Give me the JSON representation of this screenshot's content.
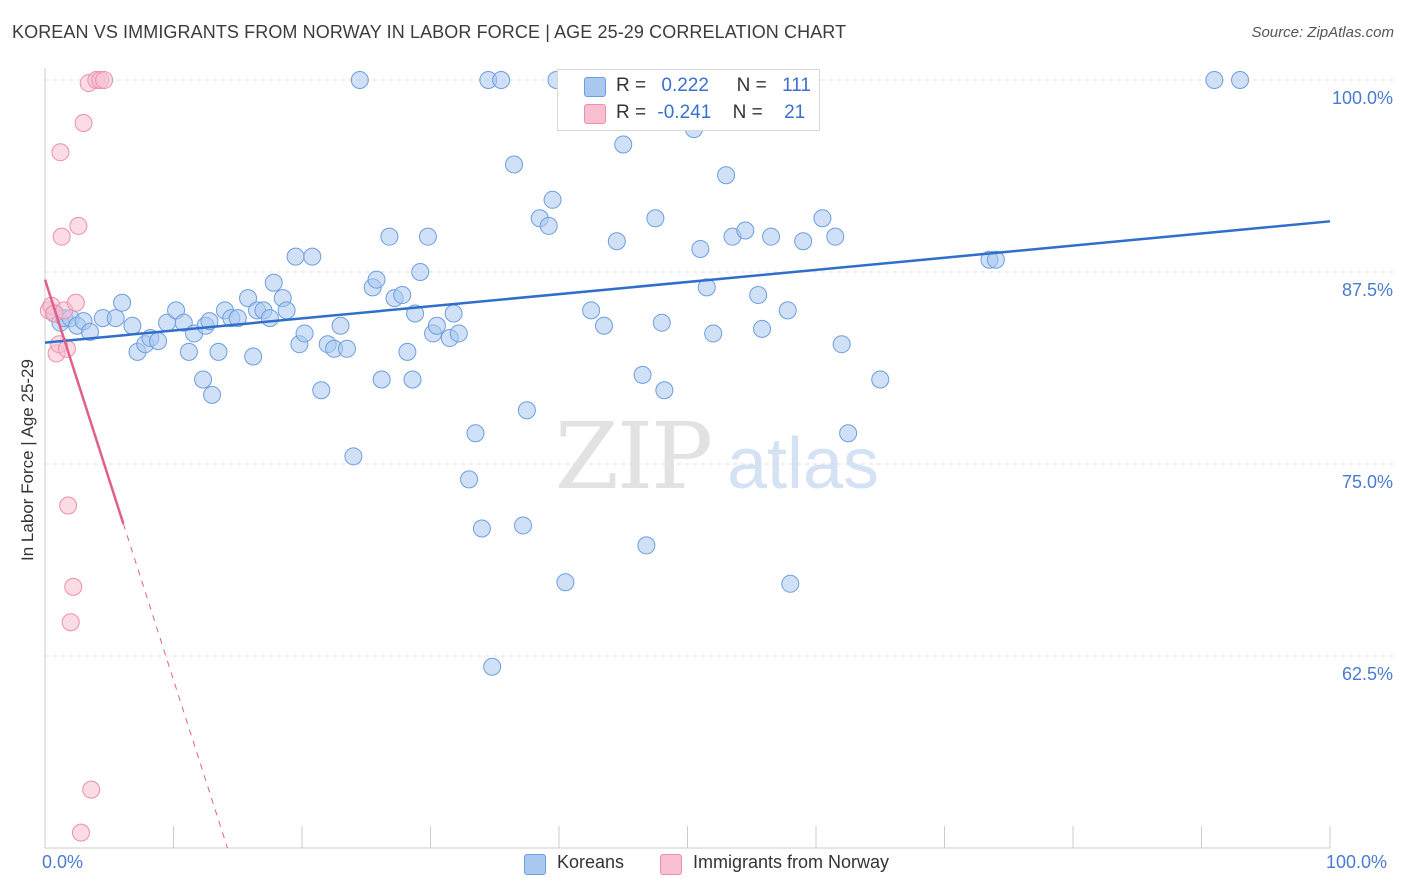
{
  "header": {
    "title": "KOREAN VS IMMIGRANTS FROM NORWAY IN LABOR FORCE | AGE 25-29 CORRELATION CHART",
    "source": "Source: ZipAtlas.com"
  },
  "watermark": {
    "zip": "ZIP",
    "atlas": "atlas"
  },
  "legend": {
    "rows": [
      {
        "r_label": "R =",
        "r_value": "0.222",
        "n_label": "N =",
        "n_value": "111"
      },
      {
        "r_label": "R =",
        "r_value": "-0.241",
        "n_label": "N =",
        "n_value": "21"
      }
    ]
  },
  "colors": {
    "blue_fill": "#aac8f0",
    "blue_stroke": "#6d9ee0",
    "blue_line": "#2f6ecb",
    "pink_fill": "#f7bfd0",
    "pink_stroke": "#ec8fab",
    "pink_line": "#e0608a",
    "grid": "#dcdcdc",
    "axis_label": "#4a7bd0"
  },
  "chart_data": {
    "type": "scatter",
    "title": "KOREAN VS IMMIGRANTS FROM NORWAY IN LABOR FORCE | AGE 25-29 CORRELATION CHART",
    "xlabel": "",
    "ylabel": "In Labor Force | Age 25-29",
    "xlim": [
      0,
      100
    ],
    "ylim": [
      50,
      101.2
    ],
    "x_tick_labels": [
      "0.0%",
      "100.0%"
    ],
    "y_ticks": [
      100,
      87.5,
      75,
      62.5
    ],
    "y_tick_labels": [
      "100.0%",
      "87.5%",
      "75.0%",
      "62.5%"
    ],
    "grid": true,
    "legend_position": "bottom",
    "series": [
      {
        "name": "Koreans",
        "R": 0.222,
        "N": 111,
        "trend": {
          "x": [
            0,
            100
          ],
          "y": [
            82.9,
            90.8
          ],
          "dashed_from": null
        },
        "points": [
          [
            0.8,
            84.8
          ],
          [
            1.2,
            84.2
          ],
          [
            1.5,
            84.5
          ],
          [
            2.0,
            84.5
          ],
          [
            2.5,
            84.0
          ],
          [
            3.0,
            84.3
          ],
          [
            3.5,
            83.6
          ],
          [
            4.5,
            84.5
          ],
          [
            5.5,
            84.5
          ],
          [
            6.0,
            85.5
          ],
          [
            6.8,
            84.0
          ],
          [
            7.2,
            82.3
          ],
          [
            7.8,
            82.8
          ],
          [
            8.2,
            83.2
          ],
          [
            8.8,
            83.0
          ],
          [
            9.5,
            84.2
          ],
          [
            10.2,
            85.0
          ],
          [
            10.8,
            84.2
          ],
          [
            11.2,
            82.3
          ],
          [
            11.6,
            83.5
          ],
          [
            12.3,
            80.5
          ],
          [
            12.5,
            84.0
          ],
          [
            12.8,
            84.3
          ],
          [
            13.0,
            79.5
          ],
          [
            13.5,
            82.3
          ],
          [
            14.0,
            85.0
          ],
          [
            14.5,
            84.5
          ],
          [
            15.0,
            84.5
          ],
          [
            15.8,
            85.8
          ],
          [
            16.2,
            82.0
          ],
          [
            16.5,
            85.0
          ],
          [
            17.0,
            85.0
          ],
          [
            17.5,
            84.5
          ],
          [
            17.8,
            86.8
          ],
          [
            18.5,
            85.8
          ],
          [
            18.8,
            85.0
          ],
          [
            19.5,
            88.5
          ],
          [
            19.8,
            82.8
          ],
          [
            20.2,
            83.5
          ],
          [
            20.8,
            88.5
          ],
          [
            21.5,
            79.8
          ],
          [
            22.0,
            82.8
          ],
          [
            22.5,
            82.5
          ],
          [
            23.0,
            84.0
          ],
          [
            23.5,
            82.5
          ],
          [
            24.0,
            75.5
          ],
          [
            24.5,
            100.0
          ],
          [
            25.5,
            86.5
          ],
          [
            25.8,
            87.0
          ],
          [
            26.2,
            80.5
          ],
          [
            26.8,
            89.8
          ],
          [
            27.2,
            85.8
          ],
          [
            27.8,
            86.0
          ],
          [
            28.2,
            82.3
          ],
          [
            28.6,
            80.5
          ],
          [
            28.8,
            84.8
          ],
          [
            29.2,
            87.5
          ],
          [
            29.8,
            89.8
          ],
          [
            30.2,
            83.5
          ],
          [
            30.5,
            84.0
          ],
          [
            31.5,
            83.2
          ],
          [
            31.8,
            84.8
          ],
          [
            32.2,
            83.5
          ],
          [
            33.0,
            74.0
          ],
          [
            33.5,
            77.0
          ],
          [
            34.0,
            70.8
          ],
          [
            34.5,
            100.0
          ],
          [
            34.8,
            61.8
          ],
          [
            35.5,
            100.0
          ],
          [
            36.5,
            94.5
          ],
          [
            37.2,
            71.0
          ],
          [
            37.5,
            78.5
          ],
          [
            38.5,
            91.0
          ],
          [
            39.2,
            90.5
          ],
          [
            39.5,
            92.2
          ],
          [
            39.8,
            100.0
          ],
          [
            40.5,
            67.3
          ],
          [
            41.5,
            100.0
          ],
          [
            42.5,
            85.0
          ],
          [
            43.5,
            84.0
          ],
          [
            44.5,
            89.5
          ],
          [
            45.0,
            95.8
          ],
          [
            46.5,
            80.8
          ],
          [
            46.8,
            69.7
          ],
          [
            47.5,
            91.0
          ],
          [
            48.0,
            84.2
          ],
          [
            48.2,
            79.8
          ],
          [
            49.5,
            100.0
          ],
          [
            50.5,
            96.8
          ],
          [
            51.0,
            89.0
          ],
          [
            51.5,
            86.5
          ],
          [
            52.0,
            83.5
          ],
          [
            53.0,
            93.8
          ],
          [
            53.5,
            89.8
          ],
          [
            54.5,
            90.2
          ],
          [
            55.5,
            86.0
          ],
          [
            55.8,
            83.8
          ],
          [
            56.5,
            89.8
          ],
          [
            58.0,
            67.2
          ],
          [
            57.8,
            85.0
          ],
          [
            59.0,
            89.5
          ],
          [
            59.5,
            100.0
          ],
          [
            60.5,
            91.0
          ],
          [
            61.5,
            89.8
          ],
          [
            62.0,
            82.8
          ],
          [
            62.5,
            77.0
          ],
          [
            65.0,
            80.5
          ],
          [
            73.5,
            88.3
          ],
          [
            74.0,
            88.3
          ],
          [
            91.0,
            100.0
          ],
          [
            93.0,
            100.0
          ]
        ]
      },
      {
        "name": "Immigrants from Norway",
        "R": -0.241,
        "N": 21,
        "trend": {
          "x": [
            0,
            14.2
          ],
          "y": [
            87.0,
            50.0
          ],
          "dashed_from": 6.1
        },
        "points": [
          [
            0.3,
            85.0
          ],
          [
            0.5,
            85.3
          ],
          [
            0.7,
            84.8
          ],
          [
            0.9,
            82.2
          ],
          [
            1.1,
            82.8
          ],
          [
            1.2,
            95.3
          ],
          [
            1.3,
            89.8
          ],
          [
            1.5,
            85.0
          ],
          [
            1.7,
            82.5
          ],
          [
            1.8,
            72.3
          ],
          [
            2.0,
            64.7
          ],
          [
            2.2,
            67.0
          ],
          [
            2.4,
            85.5
          ],
          [
            2.6,
            90.5
          ],
          [
            2.8,
            51.0
          ],
          [
            3.0,
            97.2
          ],
          [
            3.4,
            99.8
          ],
          [
            3.6,
            53.8
          ],
          [
            4.0,
            100.0
          ],
          [
            4.3,
            100.0
          ],
          [
            4.6,
            100.0
          ]
        ]
      }
    ]
  },
  "bottom_legend": {
    "items": [
      {
        "label": "Koreans"
      },
      {
        "label": "Immigrants from Norway"
      }
    ]
  }
}
